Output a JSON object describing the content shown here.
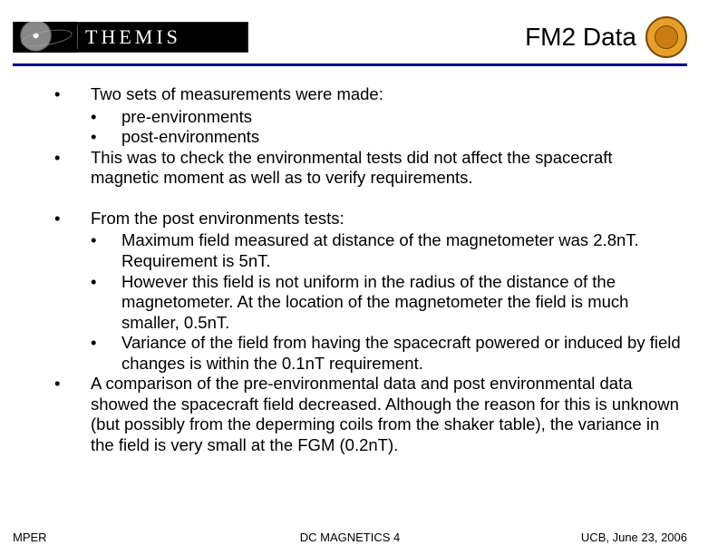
{
  "header": {
    "logo_text": "THEMIS",
    "title": "FM2 Data"
  },
  "b1": {
    "text": "Two sets of measurements were made:",
    "sub": [
      "pre-environments",
      "post-environments"
    ]
  },
  "b2": "This was to check the environmental tests did not affect the spacecraft magnetic moment as well as to verify requirements.",
  "b3": {
    "text": "From the post environments tests:",
    "sub": [
      "Maximum field measured at distance of the magnetometer was 2.8nT. Requirement is 5nT.",
      "However this field is not uniform in the radius of the distance of the magnetometer. At the location of the magnetometer the field is much smaller, 0.5nT.",
      "Variance of the field from having the spacecraft powered or induced by field changes is within the 0.1nT requirement."
    ]
  },
  "b4": "A comparison of the pre-environmental data and post environmental data showed the spacecraft field decreased. Although the reason for this is unknown (but possibly from the deperming coils from the shaker table), the variance in the field is very small at the FGM (0.2nT).",
  "footer": {
    "left": "MPER",
    "center_prefix": "DC MAGNETICS ",
    "center_num": "4",
    "right": "UCB, June 23, 2006"
  },
  "colors": {
    "rule": "#000080",
    "seal_bg": "#e6a027",
    "seal_border": "#7a4b0a"
  }
}
